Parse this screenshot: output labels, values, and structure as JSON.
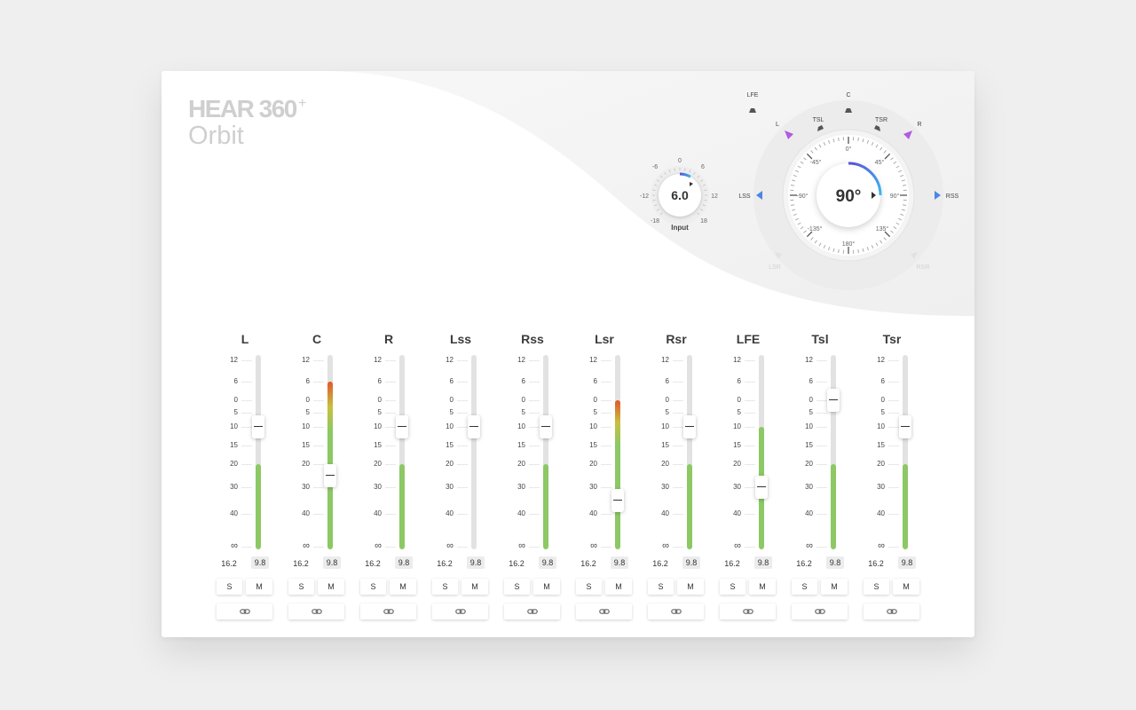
{
  "logo": {
    "brand": "HEAR 360",
    "sup": "+",
    "product": "Orbit"
  },
  "input_knob": {
    "label": "Input",
    "value": "6.0",
    "scale": [
      "-18",
      "-12",
      "-6",
      "0",
      "6",
      "12",
      "18"
    ]
  },
  "orbit": {
    "value": "90°",
    "inner_ticks": [
      "0°",
      "45°",
      "90°",
      "135°",
      "180°",
      "-135°",
      "-90°",
      "-45°"
    ],
    "speakers": {
      "lfe": "LFE",
      "c": "C",
      "l": "L",
      "r": "R",
      "tsl": "TSL",
      "tsr": "TSR",
      "lss": "LSS",
      "rss": "RSS",
      "lsr": "LSR",
      "rsr": "RSR"
    },
    "colors": {
      "active_front": "#b15ae6",
      "active_side": "#4a86e8",
      "dial_arc_start": "#5b4fd6",
      "dial_arc_end": "#3ab8f0"
    }
  },
  "fader_scale": [
    "12",
    "6",
    "0",
    "5",
    "10",
    "15",
    "20",
    "30",
    "40",
    "∞"
  ],
  "colors": {
    "meter_green": "#8cc864",
    "meter_peak": "#e0582a"
  },
  "channels": [
    {
      "name": "L",
      "level": "16.2",
      "peak": "9.8",
      "solo": "S",
      "mute": "M",
      "fader_db": 10,
      "meter_db": 20,
      "hot": false
    },
    {
      "name": "C",
      "level": "16.2",
      "peak": "9.8",
      "solo": "S",
      "mute": "M",
      "fader_db": 25,
      "meter_db": 6,
      "hot": true
    },
    {
      "name": "R",
      "level": "16.2",
      "peak": "9.8",
      "solo": "S",
      "mute": "M",
      "fader_db": 10,
      "meter_db": 20,
      "hot": false
    },
    {
      "name": "Lss",
      "level": "16.2",
      "peak": "9.8",
      "solo": "S",
      "mute": "M",
      "fader_db": 10,
      "meter_db": null,
      "hot": false
    },
    {
      "name": "Rss",
      "level": "16.2",
      "peak": "9.8",
      "solo": "S",
      "mute": "M",
      "fader_db": 10,
      "meter_db": 20,
      "hot": false
    },
    {
      "name": "Lsr",
      "level": "16.2",
      "peak": "9.8",
      "solo": "S",
      "mute": "M",
      "fader_db": 35,
      "meter_db": 0,
      "hot": true
    },
    {
      "name": "Rsr",
      "level": "16.2",
      "peak": "9.8",
      "solo": "S",
      "mute": "M",
      "fader_db": 10,
      "meter_db": 20,
      "hot": false
    },
    {
      "name": "LFE",
      "level": "16.2",
      "peak": "9.8",
      "solo": "S",
      "mute": "M",
      "fader_db": 30,
      "meter_db": 10,
      "hot": false
    },
    {
      "name": "Tsl",
      "level": "16.2",
      "peak": "9.8",
      "solo": "S",
      "mute": "M",
      "fader_db": 0,
      "meter_db": 20,
      "hot": false
    },
    {
      "name": "Tsr",
      "level": "16.2",
      "peak": "9.8",
      "solo": "S",
      "mute": "M",
      "fader_db": 10,
      "meter_db": 20,
      "hot": false
    }
  ]
}
